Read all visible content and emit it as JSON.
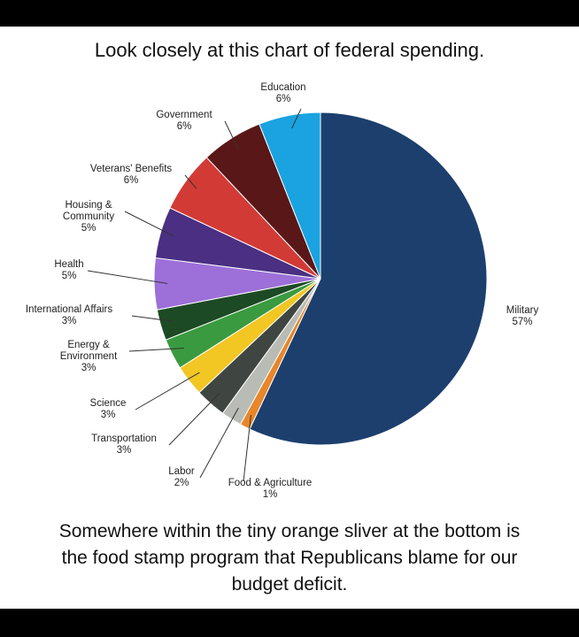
{
  "chart_data": {
    "type": "pie",
    "title": "Look closely at this chart of federal spending.",
    "caption": "Somewhere within the tiny orange sliver at the bottom is the food stamp program that Republicans blame for our budget deficit.",
    "categories": [
      "Military",
      "Food & Agriculture",
      "Labor",
      "Transportation",
      "Science",
      "Energy & Environment",
      "International Affairs",
      "Health",
      "Housing & Community",
      "Veterans' Benefits",
      "Government",
      "Education"
    ],
    "values": [
      57,
      1,
      2,
      3,
      3,
      3,
      3,
      5,
      5,
      6,
      6,
      6
    ],
    "value_labels": [
      "57%",
      "1%",
      "2%",
      "3%",
      "3%",
      "3%",
      "3%",
      "5%",
      "5%",
      "6%",
      "6%",
      "6%"
    ],
    "colors": [
      "#1c3f6e",
      "#e8862a",
      "#b9bcb5",
      "#3f4540",
      "#f2c623",
      "#3a9a3f",
      "#1c4a24",
      "#9d6fd8",
      "#4a2f82",
      "#d23a36",
      "#5a1718",
      "#1aa3e0"
    ]
  }
}
